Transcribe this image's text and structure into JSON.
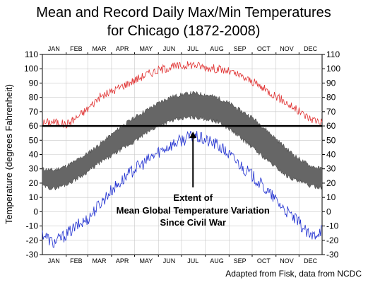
{
  "chart_data": {
    "type": "line",
    "title_lines": [
      "Mean and Record Daily Max/Min Temperatures",
      "for Chicago (1872-2008)"
    ],
    "ylabel": "Temperature (degrees Fahrenheit)",
    "ylim": [
      -30,
      110
    ],
    "yticks": [
      -30,
      -20,
      -10,
      0,
      10,
      20,
      30,
      40,
      50,
      60,
      70,
      80,
      90,
      100,
      110
    ],
    "ytick_labels": [
      "-30",
      "-20",
      "-10",
      "0",
      "10",
      "20",
      "30",
      "40",
      "50",
      "60",
      "70",
      "80",
      "90",
      "100",
      "110"
    ],
    "x_unit": "day of year",
    "xlim": [
      1,
      365
    ],
    "months": [
      "JAN",
      "FEB",
      "MAR",
      "APR",
      "MAY",
      "JUN",
      "JUL",
      "AUG",
      "SEP",
      "OCT",
      "NOV",
      "DEC"
    ],
    "month_centers": [
      16,
      45,
      75,
      105,
      136,
      166,
      197,
      228,
      258,
      289,
      319,
      350
    ],
    "month_boundaries": [
      32,
      60,
      91,
      121,
      152,
      182,
      213,
      244,
      274,
      305,
      335
    ],
    "series": [
      {
        "style": "record-max",
        "color": "#e03030",
        "x": [
          1,
          15,
          32,
          46,
          60,
          75,
          91,
          105,
          121,
          136,
          152,
          166,
          182,
          197,
          213,
          228,
          244,
          258,
          274,
          289,
          305,
          319,
          335,
          350,
          365
        ],
        "values": [
          62,
          63,
          61,
          66,
          72,
          80,
          84,
          88,
          92,
          96,
          99,
          101,
          102,
          103,
          101,
          100,
          98,
          95,
          91,
          86,
          81,
          76,
          70,
          65,
          63
        ]
      },
      {
        "style": "record-min",
        "color": "#2030d0",
        "x": [
          1,
          15,
          32,
          46,
          60,
          75,
          91,
          105,
          121,
          136,
          152,
          166,
          182,
          197,
          213,
          228,
          244,
          258,
          274,
          289,
          305,
          319,
          335,
          350,
          365
        ],
        "values": [
          -15,
          -22,
          -16,
          -10,
          -5,
          5,
          15,
          22,
          30,
          35,
          42,
          46,
          50,
          53,
          50,
          47,
          40,
          33,
          25,
          17,
          8,
          0,
          -8,
          -18,
          -12
        ]
      },
      {
        "style": "mean-range",
        "color": "#666666",
        "x": [
          1,
          15,
          32,
          46,
          60,
          75,
          91,
          105,
          121,
          136,
          152,
          166,
          182,
          197,
          213,
          228,
          244,
          258,
          274,
          289,
          305,
          319,
          335,
          350,
          365
        ],
        "upper": [
          30,
          29,
          32,
          36,
          41,
          47,
          54,
          60,
          66,
          71,
          76,
          80,
          82,
          83,
          82,
          80,
          76,
          71,
          66,
          59,
          51,
          44,
          37,
          32,
          30
        ],
        "lower": [
          18,
          16,
          19,
          23,
          28,
          34,
          39,
          44,
          49,
          55,
          60,
          63,
          65,
          66,
          65,
          63,
          58,
          52,
          45,
          38,
          31,
          25,
          21,
          18,
          17
        ]
      }
    ],
    "reference_line": {
      "y": 60,
      "color": "#000000"
    },
    "annotation": {
      "lines": [
        "Extent of",
        "Mean Global Temperature Variation",
        "Since Civil War"
      ],
      "arrow_x": 197,
      "arrow_from_y": 17,
      "arrow_to_y": 56
    }
  },
  "credit": "Adapted from Fisk, data from NCDC"
}
